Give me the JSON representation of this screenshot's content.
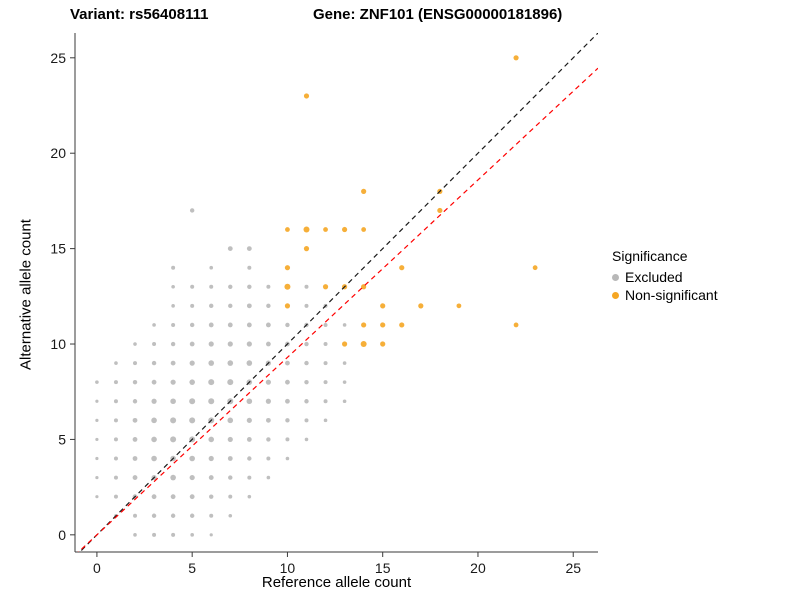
{
  "titles": {
    "variant": "Variant: rs56408111",
    "gene": "Gene: ZNF101 (ENSG00000181896)"
  },
  "chart_data": {
    "type": "scatter",
    "xlabel": "Reference allele count",
    "ylabel": "Alternative allele count",
    "xlim": [
      -1.15,
      26.3
    ],
    "ylim": [
      -0.9,
      26.3
    ],
    "xticks": [
      0,
      5,
      10,
      15,
      20,
      25
    ],
    "yticks": [
      0,
      5,
      10,
      15,
      20,
      25
    ],
    "grid": false,
    "legend": {
      "title": "Significance",
      "position": "right",
      "entries": [
        {
          "label": "Excluded",
          "color": "#B8B8B8"
        },
        {
          "label": "Non-significant",
          "color": "#F5A623"
        }
      ]
    },
    "lines": [
      {
        "name": "identity",
        "slope": 1,
        "intercept": 0,
        "color": "#1A1A1A",
        "dash": "5 4"
      },
      {
        "name": "fit",
        "slope": 0.93,
        "intercept": 0,
        "color": "#FF0000",
        "dash": "5 4"
      }
    ],
    "series": [
      {
        "name": "Excluded",
        "color": "#B8B8B8",
        "points": [
          [
            2,
            0,
            1.8
          ],
          [
            3,
            0,
            2
          ],
          [
            4,
            0,
            2
          ],
          [
            5,
            0,
            1.8
          ],
          [
            6,
            0,
            1.6
          ],
          [
            1,
            1,
            1.8
          ],
          [
            2,
            1,
            2
          ],
          [
            3,
            1,
            2.2
          ],
          [
            4,
            1,
            2.2
          ],
          [
            5,
            1,
            2.2
          ],
          [
            6,
            1,
            2
          ],
          [
            7,
            1,
            1.8
          ],
          [
            0,
            2,
            1.6
          ],
          [
            1,
            2,
            2
          ],
          [
            2,
            2,
            2.4
          ],
          [
            3,
            2,
            2.4
          ],
          [
            4,
            2,
            2.4
          ],
          [
            5,
            2,
            2.4
          ],
          [
            6,
            2,
            2.2
          ],
          [
            7,
            2,
            2
          ],
          [
            8,
            2,
            1.8
          ],
          [
            0,
            3,
            1.6
          ],
          [
            1,
            3,
            2
          ],
          [
            2,
            3,
            2.4
          ],
          [
            3,
            3,
            2.6
          ],
          [
            4,
            3,
            2.8
          ],
          [
            5,
            3,
            2.6
          ],
          [
            6,
            3,
            2.4
          ],
          [
            7,
            3,
            2.2
          ],
          [
            8,
            3,
            2
          ],
          [
            9,
            3,
            1.8
          ],
          [
            0,
            4,
            1.6
          ],
          [
            1,
            4,
            2
          ],
          [
            2,
            4,
            2.4
          ],
          [
            3,
            4,
            2.8
          ],
          [
            4,
            4,
            2.8
          ],
          [
            5,
            4,
            2.8
          ],
          [
            6,
            4,
            2.6
          ],
          [
            7,
            4,
            2.4
          ],
          [
            8,
            4,
            2.2
          ],
          [
            9,
            4,
            2
          ],
          [
            10,
            4,
            1.8
          ],
          [
            0,
            5,
            1.6
          ],
          [
            1,
            5,
            2
          ],
          [
            2,
            5,
            2.4
          ],
          [
            3,
            5,
            2.8
          ],
          [
            4,
            5,
            3
          ],
          [
            5,
            5,
            3
          ],
          [
            6,
            5,
            2.8
          ],
          [
            7,
            5,
            2.6
          ],
          [
            8,
            5,
            2.4
          ],
          [
            9,
            5,
            2.2
          ],
          [
            10,
            5,
            2
          ],
          [
            11,
            5,
            1.8
          ],
          [
            0,
            6,
            1.6
          ],
          [
            1,
            6,
            2
          ],
          [
            2,
            6,
            2.4
          ],
          [
            3,
            6,
            2.8
          ],
          [
            4,
            6,
            3
          ],
          [
            5,
            6,
            3
          ],
          [
            6,
            6,
            3
          ],
          [
            7,
            6,
            2.8
          ],
          [
            8,
            6,
            2.6
          ],
          [
            9,
            6,
            2.4
          ],
          [
            10,
            6,
            2.2
          ],
          [
            11,
            6,
            2
          ],
          [
            12,
            6,
            1.8
          ],
          [
            0,
            7,
            1.6
          ],
          [
            1,
            7,
            2
          ],
          [
            2,
            7,
            2.2
          ],
          [
            3,
            7,
            2.6
          ],
          [
            4,
            7,
            2.8
          ],
          [
            5,
            7,
            3
          ],
          [
            6,
            7,
            3
          ],
          [
            7,
            7,
            3
          ],
          [
            8,
            7,
            2.8
          ],
          [
            9,
            7,
            2.6
          ],
          [
            10,
            7,
            2.4
          ],
          [
            11,
            7,
            2.2
          ],
          [
            12,
            7,
            2
          ],
          [
            13,
            7,
            1.8
          ],
          [
            0,
            8,
            1.8
          ],
          [
            1,
            8,
            2
          ],
          [
            2,
            8,
            2.2
          ],
          [
            3,
            8,
            2.4
          ],
          [
            4,
            8,
            2.6
          ],
          [
            5,
            8,
            2.8
          ],
          [
            6,
            8,
            3
          ],
          [
            7,
            8,
            3
          ],
          [
            8,
            8,
            2.8
          ],
          [
            9,
            8,
            2.6
          ],
          [
            10,
            8,
            2.4
          ],
          [
            11,
            8,
            2.2
          ],
          [
            12,
            8,
            2
          ],
          [
            13,
            8,
            1.8
          ],
          [
            1,
            9,
            1.8
          ],
          [
            2,
            9,
            2
          ],
          [
            3,
            9,
            2.2
          ],
          [
            4,
            9,
            2.4
          ],
          [
            5,
            9,
            2.6
          ],
          [
            6,
            9,
            2.8
          ],
          [
            7,
            9,
            2.8
          ],
          [
            8,
            9,
            2.8
          ],
          [
            9,
            9,
            2.6
          ],
          [
            10,
            9,
            2.4
          ],
          [
            11,
            9,
            2.2
          ],
          [
            12,
            9,
            2
          ],
          [
            13,
            9,
            1.8
          ],
          [
            2,
            10,
            1.8
          ],
          [
            3,
            10,
            2
          ],
          [
            4,
            10,
            2.2
          ],
          [
            5,
            10,
            2.4
          ],
          [
            6,
            10,
            2.6
          ],
          [
            7,
            10,
            2.6
          ],
          [
            8,
            10,
            2.6
          ],
          [
            9,
            10,
            2.4
          ],
          [
            10,
            10,
            2.4
          ],
          [
            11,
            10,
            2.2
          ],
          [
            12,
            10,
            2
          ],
          [
            3,
            11,
            1.8
          ],
          [
            4,
            11,
            2
          ],
          [
            5,
            11,
            2.2
          ],
          [
            6,
            11,
            2.4
          ],
          [
            7,
            11,
            2.4
          ],
          [
            8,
            11,
            2.4
          ],
          [
            9,
            11,
            2.4
          ],
          [
            10,
            11,
            2.2
          ],
          [
            11,
            11,
            2.2
          ],
          [
            12,
            11,
            2
          ],
          [
            13,
            11,
            1.8
          ],
          [
            4,
            12,
            1.8
          ],
          [
            5,
            12,
            2
          ],
          [
            6,
            12,
            2.2
          ],
          [
            7,
            12,
            2.2
          ],
          [
            8,
            12,
            2.4
          ],
          [
            9,
            12,
            2.2
          ],
          [
            11,
            12,
            2
          ],
          [
            12,
            12,
            2
          ],
          [
            4,
            13,
            1.8
          ],
          [
            5,
            13,
            2
          ],
          [
            6,
            13,
            2
          ],
          [
            7,
            13,
            2.2
          ],
          [
            8,
            13,
            2.2
          ],
          [
            9,
            13,
            2
          ],
          [
            11,
            13,
            2
          ],
          [
            4,
            14,
            2
          ],
          [
            6,
            14,
            1.8
          ],
          [
            8,
            14,
            2
          ],
          [
            7,
            15,
            2.4
          ],
          [
            8,
            15,
            2.4
          ],
          [
            5,
            17,
            2.2
          ]
        ]
      },
      {
        "name": "Non-significant",
        "color": "#F5A623",
        "points": [
          [
            10,
            12,
            2.6
          ],
          [
            10,
            13,
            3
          ],
          [
            10,
            14,
            2.6
          ],
          [
            10,
            16,
            2.4
          ],
          [
            11,
            15,
            2.6
          ],
          [
            11,
            16,
            3
          ],
          [
            11,
            23,
            2.6
          ],
          [
            12,
            13,
            2.6
          ],
          [
            12,
            16,
            2.4
          ],
          [
            13,
            10,
            2.6
          ],
          [
            13,
            13,
            2.6
          ],
          [
            13,
            16,
            2.6
          ],
          [
            14,
            10,
            3
          ],
          [
            14,
            11,
            2.6
          ],
          [
            14,
            13,
            2.6
          ],
          [
            14,
            16,
            2.4
          ],
          [
            14,
            18,
            2.6
          ],
          [
            15,
            10,
            2.6
          ],
          [
            15,
            11,
            2.6
          ],
          [
            15,
            12,
            2.6
          ],
          [
            16,
            11,
            2.6
          ],
          [
            16,
            14,
            2.6
          ],
          [
            17,
            12,
            2.6
          ],
          [
            18,
            17,
            2.6
          ],
          [
            18,
            18,
            2.6
          ],
          [
            19,
            12,
            2.4
          ],
          [
            22,
            11,
            2.4
          ],
          [
            22,
            25,
            2.6
          ],
          [
            23,
            14,
            2.4
          ]
        ]
      }
    ]
  }
}
